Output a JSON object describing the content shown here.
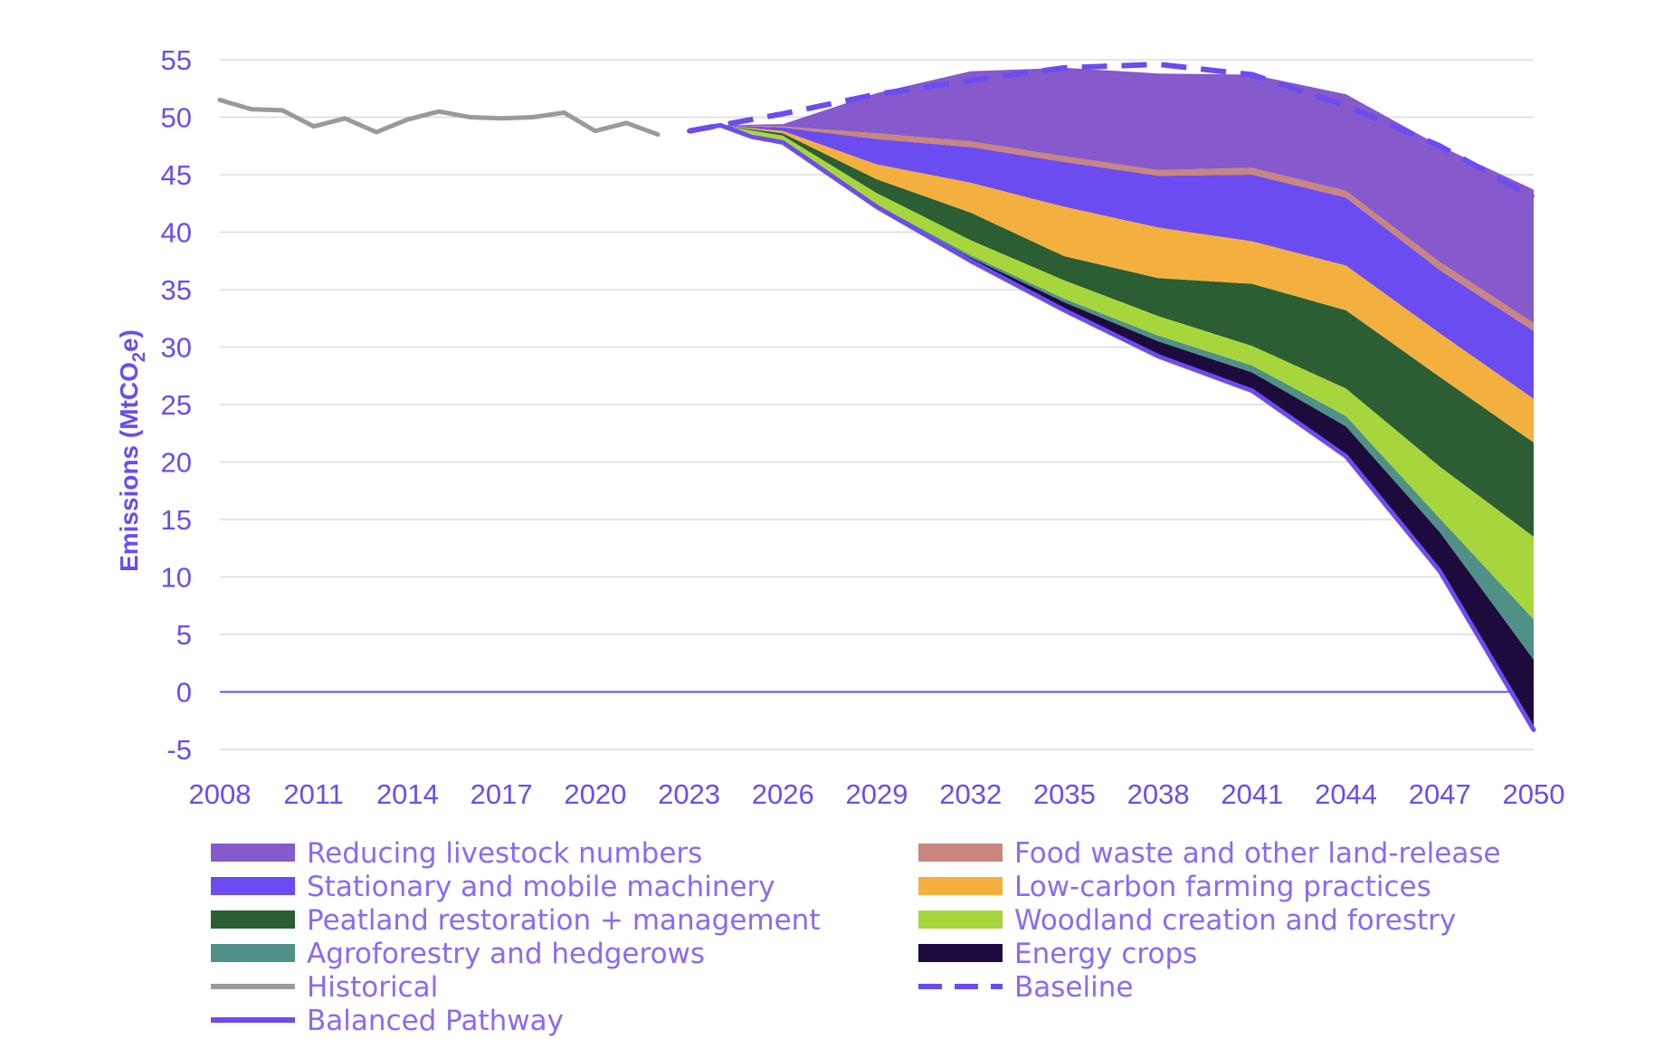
{
  "chart_data": {
    "type": "area",
    "ylabel": "Emissions (MtCO2e)",
    "ylabel_parts": {
      "main": "Emissions (MtCO",
      "sub": "2",
      "end": "e)"
    },
    "ylim": [
      -5,
      55
    ],
    "yticks": [
      -5,
      0,
      5,
      10,
      15,
      20,
      25,
      30,
      35,
      40,
      45,
      50,
      55
    ],
    "xlim": [
      2008,
      2050
    ],
    "xticks": [
      2008,
      2011,
      2014,
      2017,
      2020,
      2023,
      2026,
      2029,
      2032,
      2035,
      2038,
      2041,
      2044,
      2047,
      2050
    ],
    "grid": true,
    "legend_position": "bottom",
    "x_projection": [
      2024,
      2026,
      2029,
      2032,
      2035,
      2038,
      2041,
      2044,
      2047,
      2050
    ],
    "lines": [
      {
        "name": "Historical",
        "color": "#9a9a9a",
        "style": "solid",
        "x": [
          2008,
          2009,
          2010,
          2011,
          2012,
          2013,
          2014,
          2015,
          2016,
          2017,
          2018,
          2019,
          2020,
          2021,
          2022
        ],
        "y": [
          51.5,
          50.7,
          50.6,
          49.2,
          49.9,
          48.7,
          49.8,
          50.5,
          50.0,
          49.9,
          50.0,
          50.4,
          48.8,
          49.5,
          48.5
        ]
      },
      {
        "name": "Baseline",
        "color": "#6b4cf0",
        "style": "dashed",
        "x": [
          2023,
          2024,
          2026,
          2029,
          2032,
          2035,
          2038,
          2041,
          2044,
          2047,
          2050
        ],
        "y": [
          48.8,
          49.3,
          50.3,
          52.0,
          53.2,
          54.3,
          54.6,
          53.7,
          51.0,
          47.5,
          43.0
        ]
      },
      {
        "name": "Balanced Pathway",
        "color": "#6b4cf0",
        "style": "solid",
        "x": [
          2023,
          2024,
          2025,
          2026,
          2029,
          2032,
          2035,
          2038,
          2041,
          2044,
          2047,
          2050
        ],
        "y": [
          48.8,
          49.3,
          48.3,
          47.8,
          42.2,
          37.5,
          33.2,
          29.2,
          26.2,
          20.5,
          10.5,
          -3.3
        ]
      }
    ],
    "series": [
      {
        "name": "Energy crops",
        "color": "#1e0b3d",
        "values": [
          0.0,
          0.0,
          0.1,
          0.3,
          0.7,
          1.3,
          1.6,
          2.6,
          3.4,
          6.1
        ]
      },
      {
        "name": "Agroforestry and hedgerows",
        "color": "#4f9186",
        "values": [
          0.0,
          0.0,
          0.1,
          0.2,
          0.3,
          0.5,
          0.6,
          0.9,
          1.2,
          3.5
        ]
      },
      {
        "name": "Woodland creation and forestry",
        "color": "#a7d63c",
        "values": [
          0.0,
          0.6,
          1.0,
          1.3,
          1.6,
          1.7,
          1.7,
          2.4,
          4.5,
          7.2
        ]
      },
      {
        "name": "Peatland restoration + management",
        "color": "#2c5e33",
        "values": [
          0.0,
          0.2,
          1.2,
          2.4,
          2.1,
          3.3,
          5.4,
          6.8,
          7.8,
          8.2
        ]
      },
      {
        "name": "Low-carbon farming practices",
        "color": "#f4b03f",
        "values": [
          0.0,
          0.2,
          1.3,
          2.6,
          4.3,
          4.4,
          3.7,
          3.9,
          3.8,
          3.8
        ]
      },
      {
        "name": "Stationary and mobile machinery",
        "color": "#6b4cf0",
        "values": [
          0.0,
          0.3,
          2.2,
          3.1,
          3.9,
          4.5,
          5.8,
          5.9,
          5.5,
          5.9
        ]
      },
      {
        "name": "Food waste and other land-release",
        "color": "#c8867e",
        "values": [
          0.0,
          0.1,
          0.5,
          0.5,
          0.5,
          0.5,
          0.6,
          0.6,
          0.7,
          0.7
        ]
      },
      {
        "name": "Reducing livestock numbers",
        "color": "#8659cc",
        "values": [
          0.0,
          0.2,
          3.5,
          6.1,
          7.7,
          8.4,
          8.1,
          8.4,
          10.1,
          11.6
        ]
      }
    ],
    "legend": [
      {
        "label": "Reducing livestock numbers",
        "color": "#8659cc",
        "kind": "area"
      },
      {
        "label": "Food waste and other land-release",
        "color": "#c8867e",
        "kind": "area"
      },
      {
        "label": "Stationary and mobile machinery",
        "color": "#6b4cf0",
        "kind": "area"
      },
      {
        "label": "Low-carbon farming practices",
        "color": "#f4b03f",
        "kind": "area"
      },
      {
        "label": "Peatland restoration + management",
        "color": "#2c5e33",
        "kind": "area"
      },
      {
        "label": "Woodland creation and forestry",
        "color": "#a7d63c",
        "kind": "area"
      },
      {
        "label": "Agroforestry and hedgerows",
        "color": "#4f9186",
        "kind": "area"
      },
      {
        "label": "Energy crops",
        "color": "#1e0b3d",
        "kind": "area"
      },
      {
        "label": "Historical",
        "color": "#9a9a9a",
        "kind": "line"
      },
      {
        "label": "Baseline",
        "color": "#6b4cf0",
        "kind": "dashed"
      },
      {
        "label": "Balanced Pathway",
        "color": "#6b4cf0",
        "kind": "line"
      }
    ]
  }
}
